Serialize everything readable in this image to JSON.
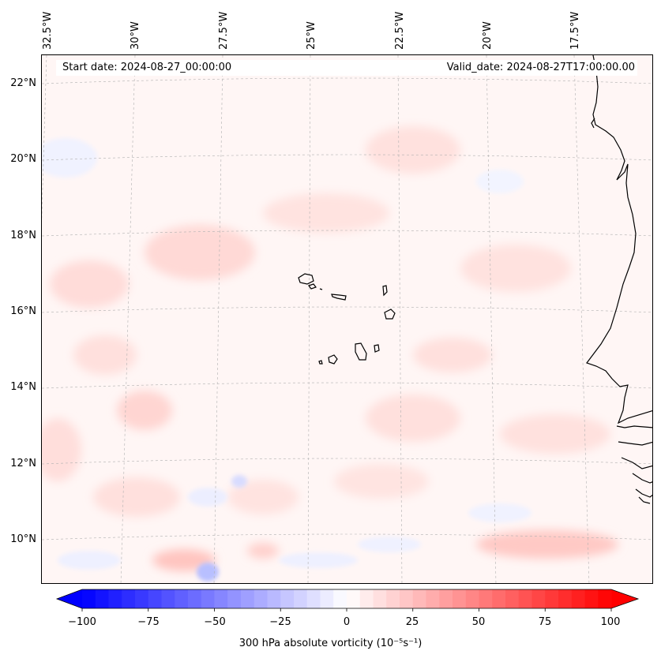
{
  "header": {
    "start_date": "Start date: 2024-08-27_00:00:00",
    "valid_date": "Valid_date: 2024-08-27T17:00:00.00"
  },
  "axes": {
    "lon_labels": [
      "32.5°W",
      "30°W",
      "27.5°W",
      "25°W",
      "22.5°W",
      "20°W",
      "17.5°W"
    ],
    "lat_labels": [
      "22°N",
      "20°N",
      "18°N",
      "16°N",
      "14°N",
      "12°N",
      "10°N"
    ]
  },
  "colorbar": {
    "ticks": [
      "−100",
      "−75",
      "−50",
      "−25",
      "0",
      "25",
      "50",
      "75",
      "100"
    ],
    "label": "300 hPa absolute vorticity (10⁻⁵s⁻¹)",
    "range": [
      -100,
      100
    ],
    "cmap": "bwr",
    "extend": "both"
  },
  "colors": {
    "negative": "#0000ff",
    "neutral": "#ffffff",
    "positive": "#ff0000",
    "coastline": "#000000",
    "gridline": "#b0b0b0"
  }
}
